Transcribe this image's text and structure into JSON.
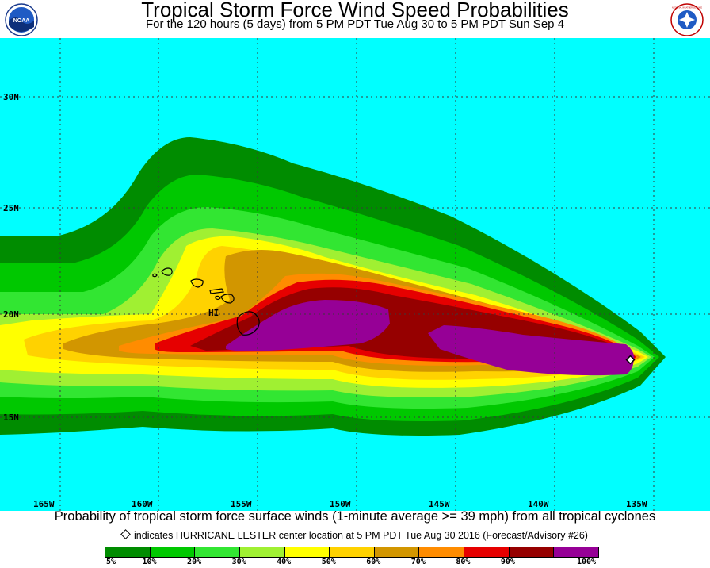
{
  "header": {
    "title": "Tropical Storm Force Wind Speed Probabilities",
    "subtitle": "For the 120 hours (5 days) from 5 PM PDT Tue Aug 30 to 5 PM PDT Sun Sep 4",
    "left_logo_text": "NOAA",
    "right_logo_text": "NATIONAL WEATHER SERVICE"
  },
  "map": {
    "ocean_color": "#00ffff",
    "latitude_labels": [
      "30N",
      "25N",
      "20N",
      "15N"
    ],
    "longitude_labels": [
      "165W",
      "160W",
      "155W",
      "150W",
      "145W",
      "140W",
      "135W"
    ],
    "island_label": "HI",
    "storm_center_icon": "diamond-icon"
  },
  "footer": {
    "caption": "Probability of tropical storm force surface winds (1-minute average >= 39 mph) from all tropical cyclones",
    "note": "indicates HURRICANE LESTER center location at 5 PM PDT Tue Aug 30 2016 (Forecast/Advisory #26)"
  },
  "legend": {
    "labels": [
      "5%",
      "10%",
      "20%",
      "30%",
      "40%",
      "50%",
      "60%",
      "70%",
      "80%",
      "90%",
      "100%"
    ],
    "colors": [
      "#008c00",
      "#00c800",
      "#32e632",
      "#a0f032",
      "#ffff00",
      "#ffd200",
      "#d29600",
      "#ff8c00",
      "#e60000",
      "#960000",
      "#960096"
    ]
  }
}
